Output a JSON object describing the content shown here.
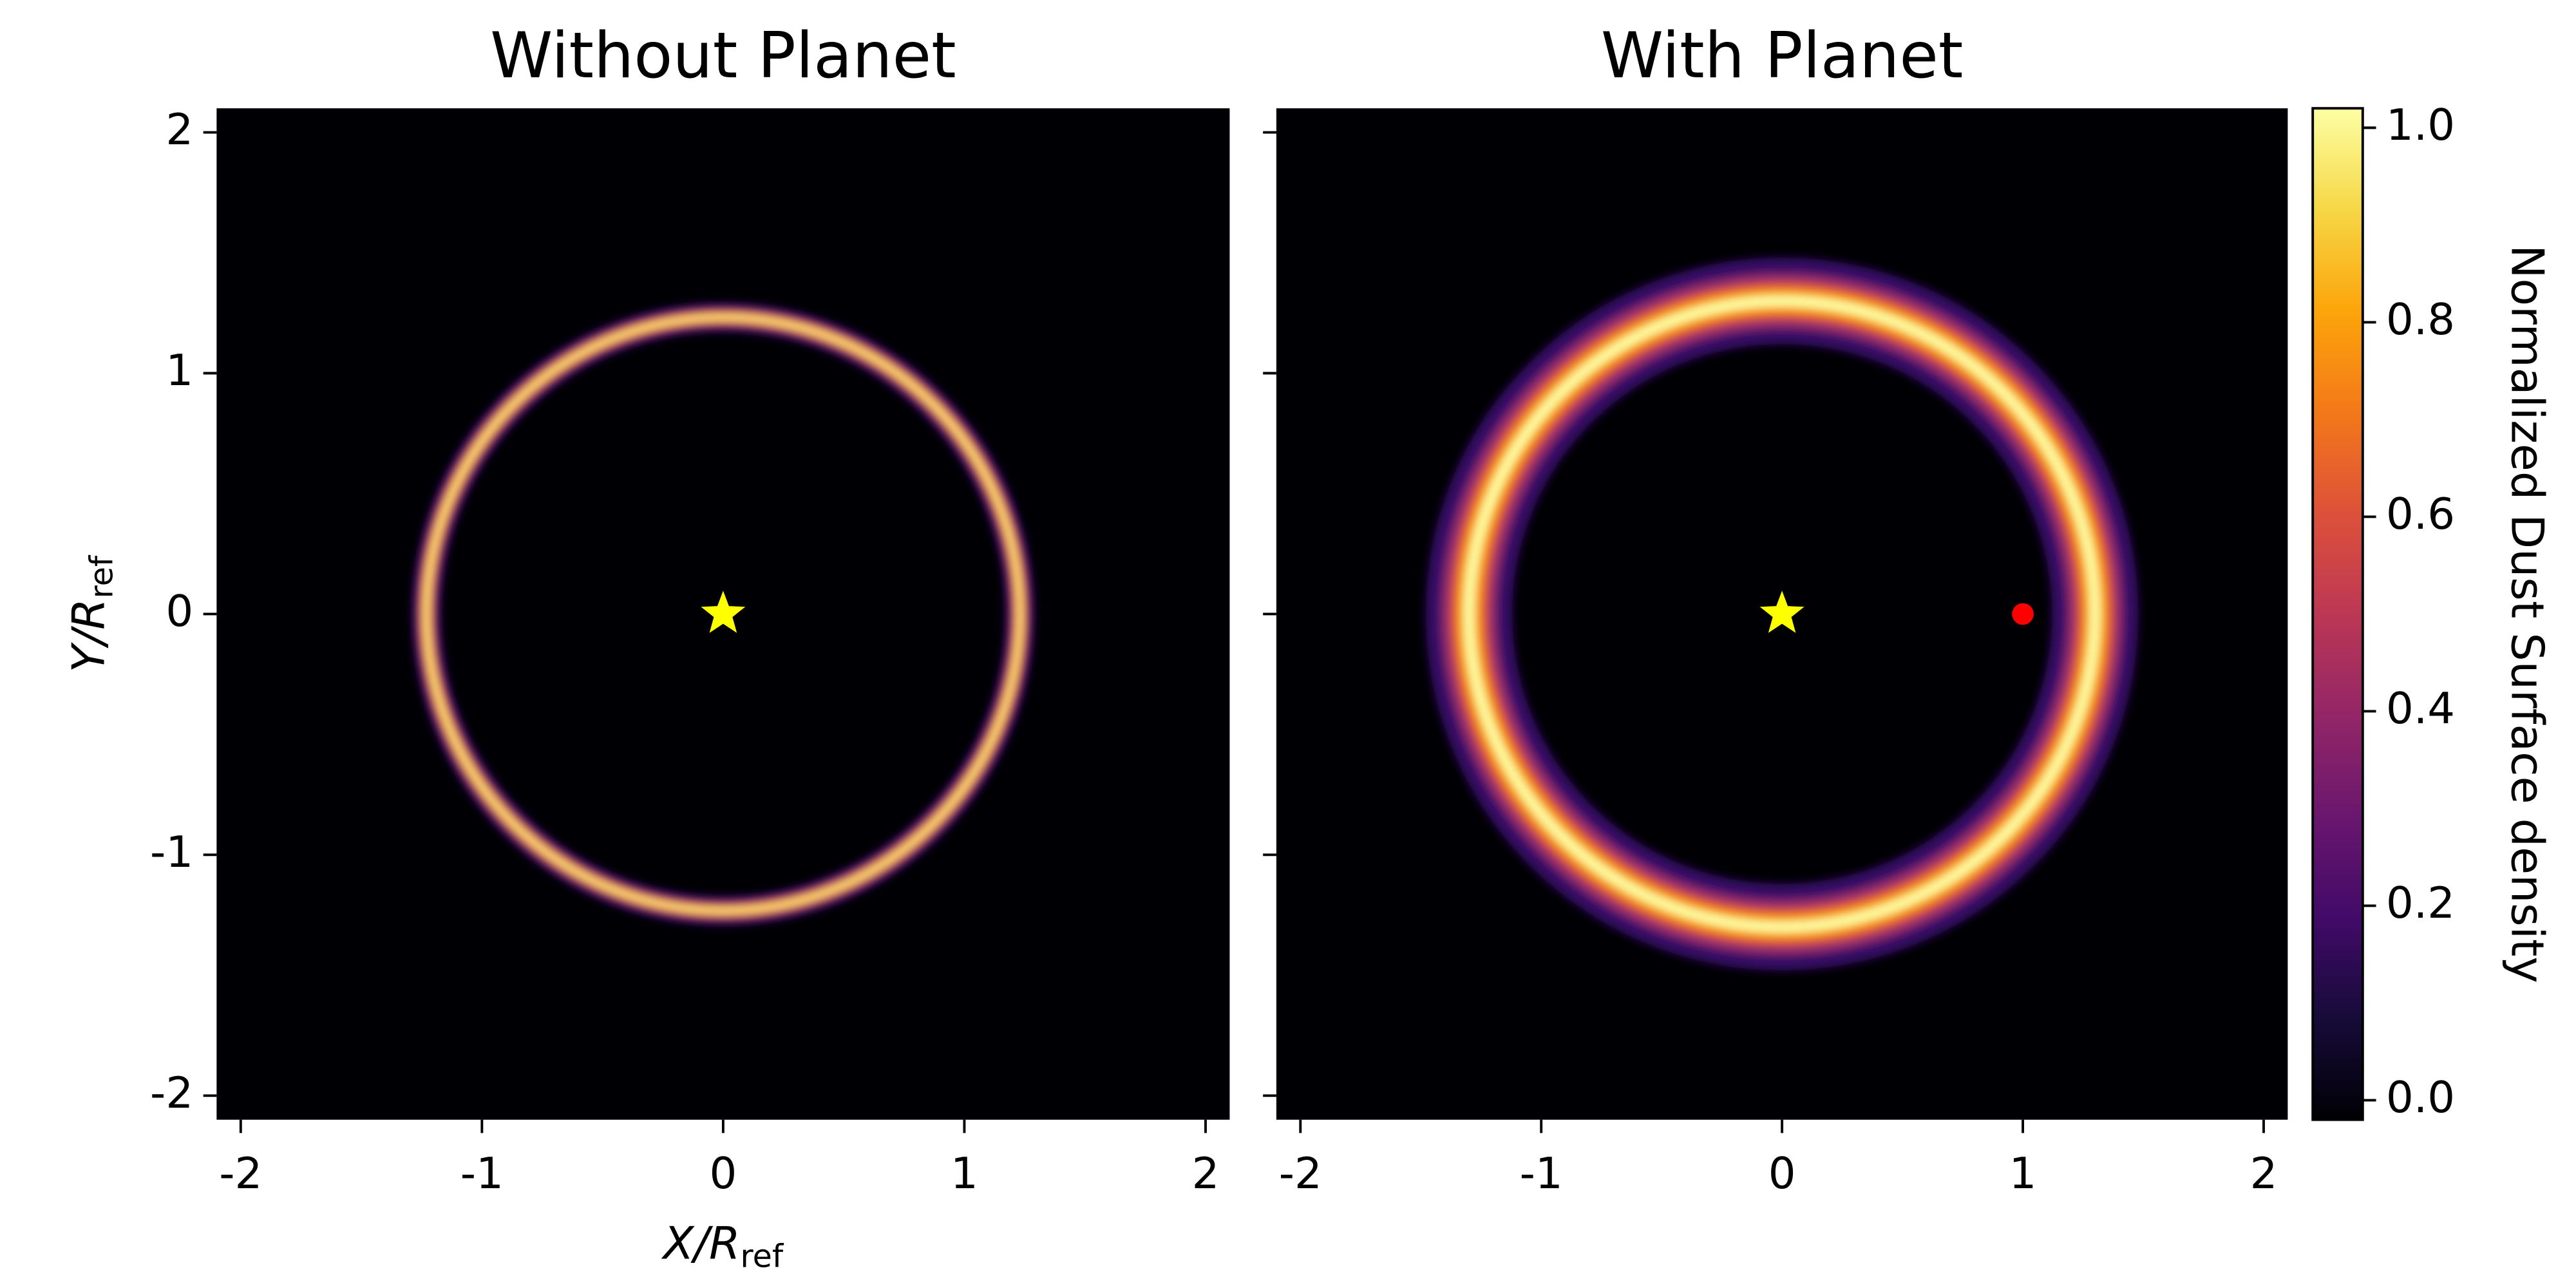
{
  "chart_data": [
    {
      "type": "image",
      "title": "Without Planet",
      "xlabel": {
        "text": "X/R",
        "sub": "ref"
      },
      "ylabel": {
        "text": "Y/R",
        "sub": "ref"
      },
      "xlim": [
        -2.1,
        2.1
      ],
      "ylim": [
        -2.1,
        2.1
      ],
      "xticks": [
        -2,
        -1,
        0,
        1,
        2
      ],
      "yticks": [
        -2,
        -1,
        0,
        1,
        2
      ],
      "ring": {
        "radius": 1.23,
        "width": 0.03
      },
      "star": {
        "x": 0,
        "y": 0,
        "color": "#ffff00"
      }
    },
    {
      "type": "image",
      "title": "With Planet",
      "xlim": [
        -2.1,
        2.1
      ],
      "ylim": [
        -2.1,
        2.1
      ],
      "xticks": [
        -2,
        -1,
        0,
        1,
        2
      ],
      "yticks": [
        -2,
        -1,
        0,
        1,
        2
      ],
      "ring": {
        "radius": 1.3,
        "width": 0.09
      },
      "star": {
        "x": 0,
        "y": 0,
        "color": "#ffff00"
      },
      "planet": {
        "x": 1,
        "y": 0,
        "color": "#ff0000"
      }
    }
  ],
  "colorbar": {
    "label": "Normalized Dust Surface density",
    "lim": [
      -0.02,
      1.02
    ],
    "ticks": [
      {
        "value": 0,
        "label": "0.0"
      },
      0.2,
      0.4,
      0.6,
      0.8,
      {
        "value": 1,
        "label": "1.0"
      }
    ]
  }
}
